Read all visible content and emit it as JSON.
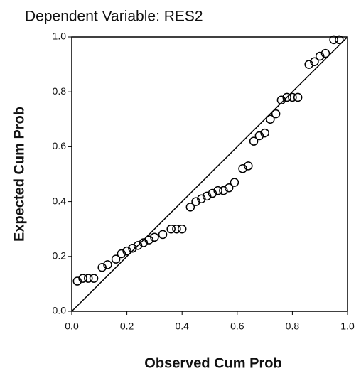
{
  "chart_data": {
    "type": "scatter",
    "title": "Dependent Variable: RES2",
    "xlabel": "Observed Cum Prob",
    "ylabel": "Expected Cum Prob",
    "x": [
      0.02,
      0.04,
      0.06,
      0.08,
      0.11,
      0.13,
      0.16,
      0.18,
      0.2,
      0.22,
      0.24,
      0.26,
      0.28,
      0.3,
      0.33,
      0.36,
      0.38,
      0.4,
      0.43,
      0.45,
      0.47,
      0.49,
      0.51,
      0.53,
      0.55,
      0.57,
      0.59,
      0.62,
      0.64,
      0.66,
      0.68,
      0.7,
      0.72,
      0.74,
      0.76,
      0.78,
      0.8,
      0.82,
      0.86,
      0.88,
      0.9,
      0.92,
      0.95,
      0.97
    ],
    "values": [
      0.11,
      0.12,
      0.12,
      0.12,
      0.16,
      0.17,
      0.19,
      0.21,
      0.22,
      0.23,
      0.24,
      0.25,
      0.26,
      0.27,
      0.28,
      0.3,
      0.3,
      0.3,
      0.38,
      0.4,
      0.41,
      0.42,
      0.43,
      0.44,
      0.44,
      0.45,
      0.47,
      0.52,
      0.53,
      0.62,
      0.64,
      0.65,
      0.7,
      0.72,
      0.77,
      0.78,
      0.78,
      0.78,
      0.9,
      0.91,
      0.93,
      0.94,
      0.99,
      0.99
    ],
    "color": "#000000",
    "xlim": [
      0,
      1
    ],
    "ylim": [
      0,
      1
    ],
    "xticks": [
      {
        "value": 0,
        "label": "0.0"
      },
      0.2,
      0.4,
      0.6,
      0.8,
      {
        "value": 1,
        "label": "1.0"
      }
    ],
    "yticks": [
      {
        "value": 0,
        "label": "0.0"
      },
      0.2,
      0.4,
      0.6,
      0.8,
      {
        "value": 1,
        "label": "1.0"
      }
    ],
    "grid": false
  }
}
